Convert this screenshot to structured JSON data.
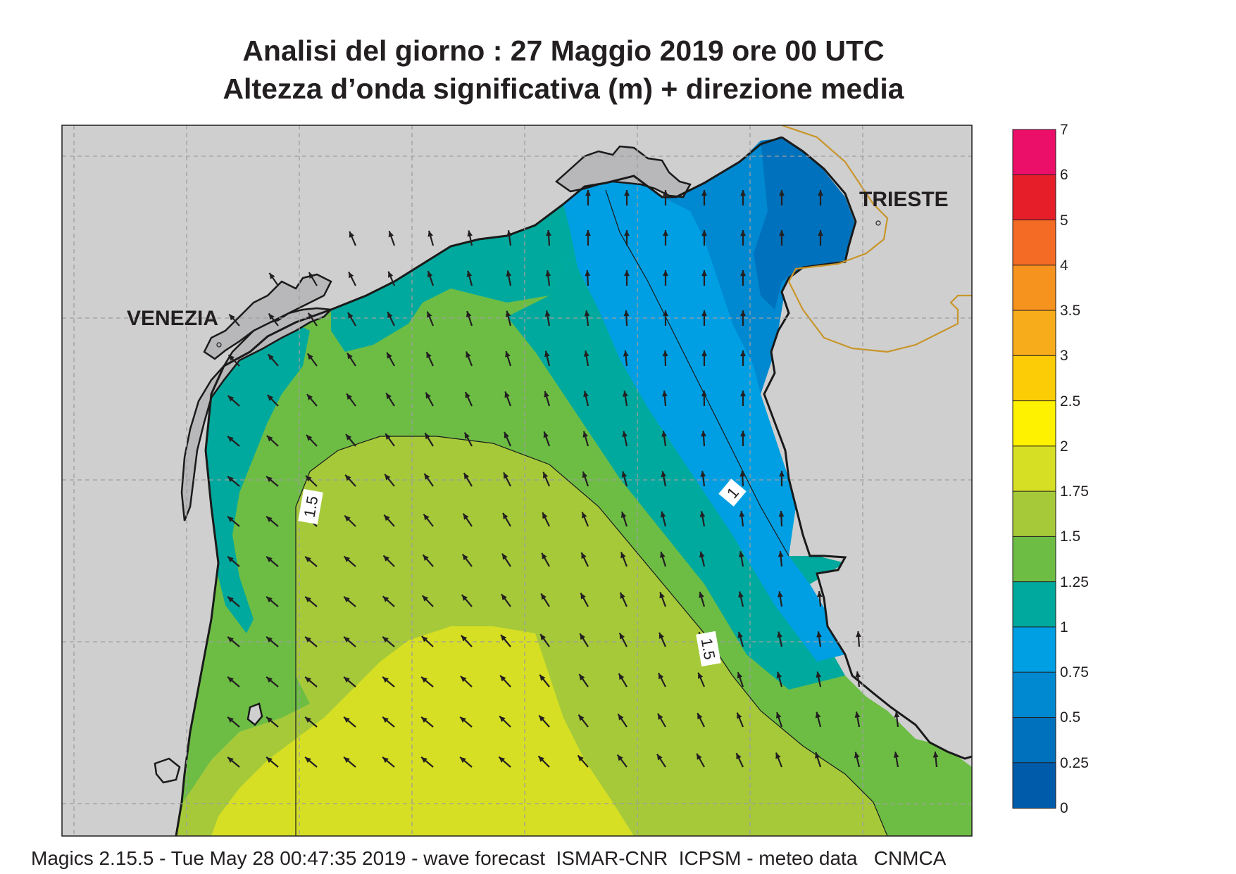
{
  "title": {
    "line1": "Analisi del giorno :  27   Maggio  2019   ore 00 UTC",
    "line2": "Altezza d’onda significativa (m) + direzione media"
  },
  "places": [
    "VENEZIA",
    "TRIESTE"
  ],
  "contour_labels": [
    "1.5",
    "1",
    "1.5"
  ],
  "colorbar": {
    "labels": [
      "7",
      "6",
      "5",
      "4",
      "3.5",
      "3",
      "2.5",
      "2",
      "1.75",
      "1.5",
      "1.25",
      "1",
      "0.75",
      "0.5",
      "0.25",
      "0"
    ],
    "colors": [
      "#ec0f6a",
      "#e61e2a",
      "#f36b24",
      "#f6921e",
      "#f7ac1b",
      "#fccd06",
      "#fff200",
      "#d6df23",
      "#a6c93a",
      "#6dbd45",
      "#00a99d",
      "#009fe3",
      "#0089d0",
      "#0071bc",
      "#005baa"
    ]
  },
  "colors": {
    "land": "#cfcfd0",
    "lagoon": "#b8b8ba",
    "coast": "#1a1a1a",
    "border": "#c8962a",
    "arrow": "#231f20"
  },
  "footer": "Magics 2.15.5 - Tue May 28 00:47:35 2019 - wave forecast  ISMAR-CNR  ICPSM - meteo data   CNMCA"
}
